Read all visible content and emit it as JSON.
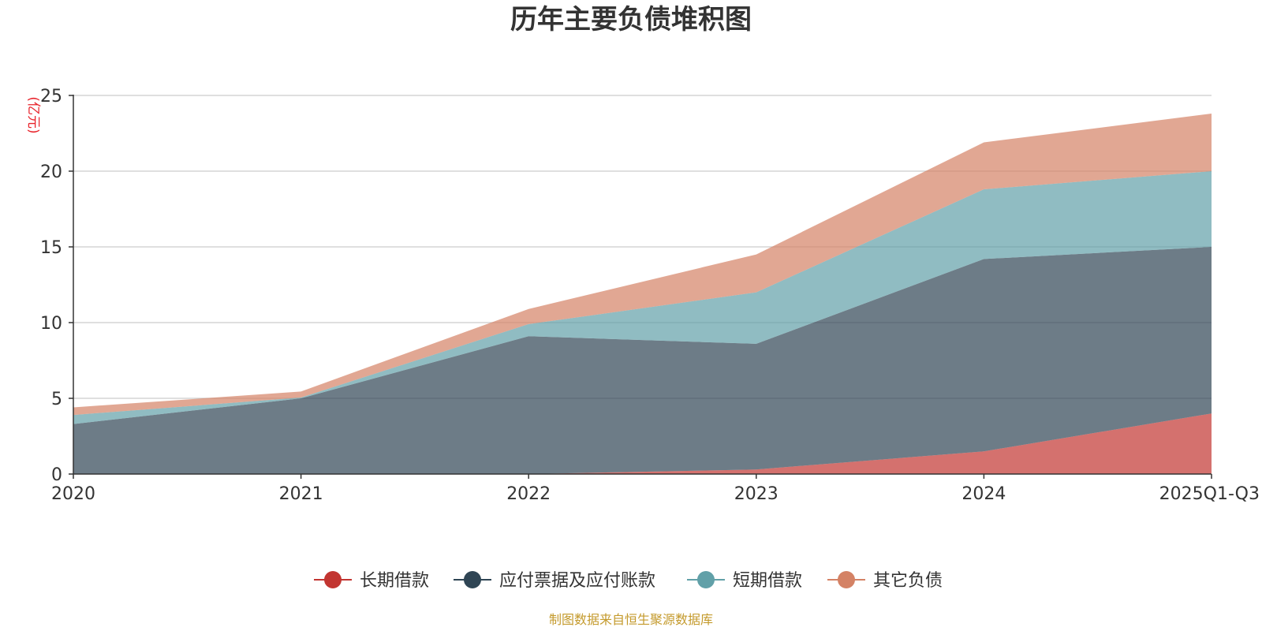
{
  "chart_data": {
    "type": "area",
    "stacked": true,
    "title": "历年主要负债堆积图",
    "ylabel": "(亿元)",
    "ylim": [
      0,
      25
    ],
    "yticks": [
      0,
      5,
      10,
      15,
      20,
      25
    ],
    "categories": [
      "2020",
      "2021",
      "2022",
      "2023",
      "2024",
      "2025Q1-Q3"
    ],
    "series": [
      {
        "name": "长期借款",
        "color": "#c23531",
        "values": [
          0,
          0,
          0,
          0.3,
          1.5,
          4.0
        ]
      },
      {
        "name": "应付票据及应付账款",
        "color": "#2f4554",
        "values": [
          3.3,
          5.0,
          9.1,
          8.3,
          12.7,
          11.0
        ]
      },
      {
        "name": "短期借款",
        "color": "#61a0a8",
        "values": [
          0.6,
          0.05,
          0.8,
          3.4,
          4.6,
          5.0
        ]
      },
      {
        "name": "其它负债",
        "color": "#d48265",
        "values": [
          0.5,
          0.4,
          1.0,
          2.5,
          3.1,
          3.8
        ]
      }
    ],
    "grid": true,
    "legend_position": "bottom",
    "source": "制图数据来自恒生聚源数据库",
    "colors": {
      "title": "#333333",
      "unit": "#e8232b",
      "source": "#c49a2c",
      "grid": "#cccccc",
      "axis": "#333333"
    }
  }
}
